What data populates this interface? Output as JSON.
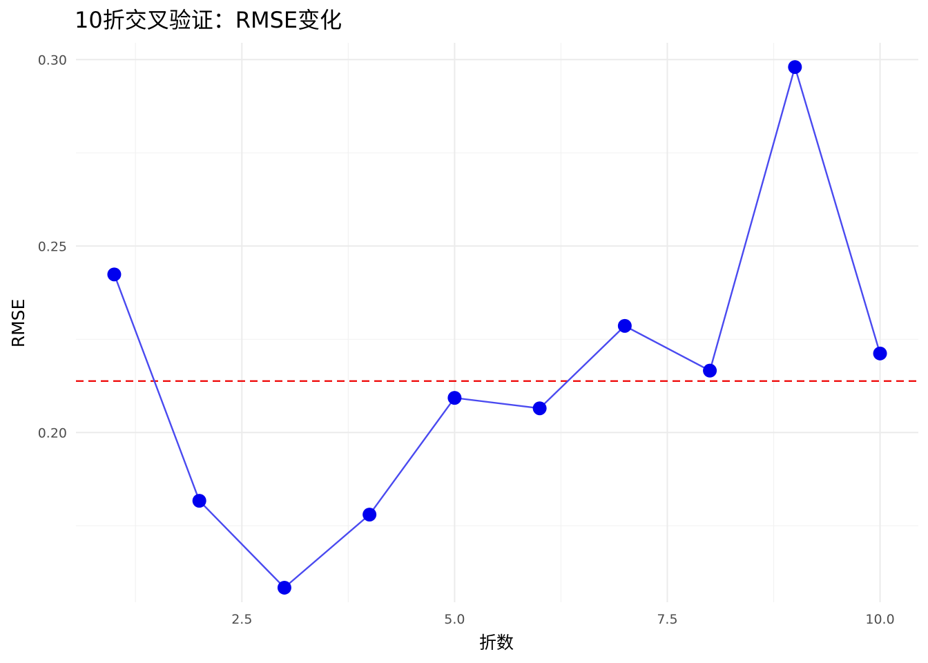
{
  "chart_data": {
    "type": "line",
    "title": "10折交叉验证：RMSE变化",
    "xlabel": "折数",
    "ylabel": "RMSE",
    "xlim": [
      0.55,
      10.45
    ],
    "ylim": [
      0.1545,
      0.3045
    ],
    "x_ticks": [
      2.5,
      5.0,
      7.5,
      10.0
    ],
    "x_tick_labels": [
      "2.5",
      "5.0",
      "7.5",
      "10.0"
    ],
    "x_minor_ticks": [
      1.25,
      3.75,
      6.25,
      8.75
    ],
    "y_ticks": [
      0.2,
      0.25,
      0.3
    ],
    "y_tick_labels": [
      "0.20",
      "0.25",
      "0.30"
    ],
    "y_minor_ticks": [
      0.175,
      0.225,
      0.275
    ],
    "grid": true,
    "legend": "none",
    "series": [
      {
        "x": [
          1,
          2,
          3,
          4,
          5,
          6,
          7,
          8,
          9,
          10
        ],
        "values": [
          0.2424,
          0.1817,
          0.1584,
          0.178,
          0.2093,
          0.2065,
          0.2286,
          0.2166,
          0.298,
          0.2212
        ],
        "line_color": "#4a4af0",
        "point_color": "#0000ee"
      }
    ],
    "reference_line": {
      "y": 0.2138,
      "color": "#ee0000",
      "style": "dashed"
    }
  }
}
